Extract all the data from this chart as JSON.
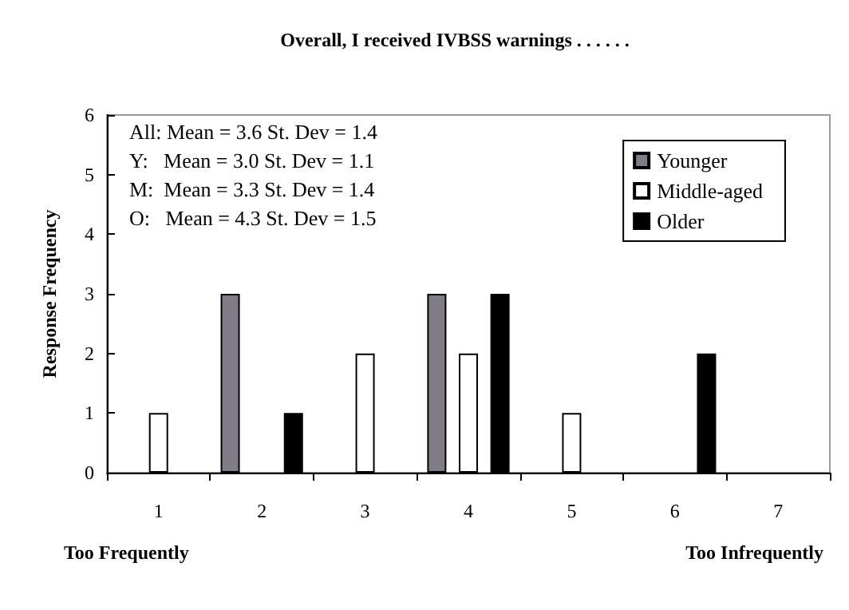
{
  "chart_data": {
    "type": "bar",
    "title": "Overall, I received IVBSS warnings . . . . . .",
    "ylabel": "Response Frequency",
    "categories": [
      "1",
      "2",
      "3",
      "4",
      "5",
      "6",
      "7"
    ],
    "series": [
      {
        "name": "Younger",
        "color": "#807c88",
        "values": [
          0,
          3,
          0,
          3,
          0,
          0,
          0
        ]
      },
      {
        "name": "Middle-aged",
        "color": "#ffffff",
        "values": [
          1,
          0,
          2,
          2,
          1,
          0,
          0
        ]
      },
      {
        "name": "Older",
        "color": "#000000",
        "values": [
          0,
          1,
          0,
          3,
          0,
          2,
          0
        ]
      }
    ],
    "ylim": [
      0,
      6
    ],
    "yticks": [
      0,
      1,
      2,
      3,
      4,
      5,
      6
    ],
    "grid": false,
    "legend": "top right",
    "annotations": [
      "All: Mean = 3.6 St. Dev = 1.4",
      "Y:   Mean = 3.0 St. Dev = 1.1",
      "M:  Mean = 3.3 St. Dev = 1.4",
      "O:   Mean = 4.3 St. Dev = 1.5",
      "Too Frequently",
      "Too Infrequently"
    ]
  }
}
